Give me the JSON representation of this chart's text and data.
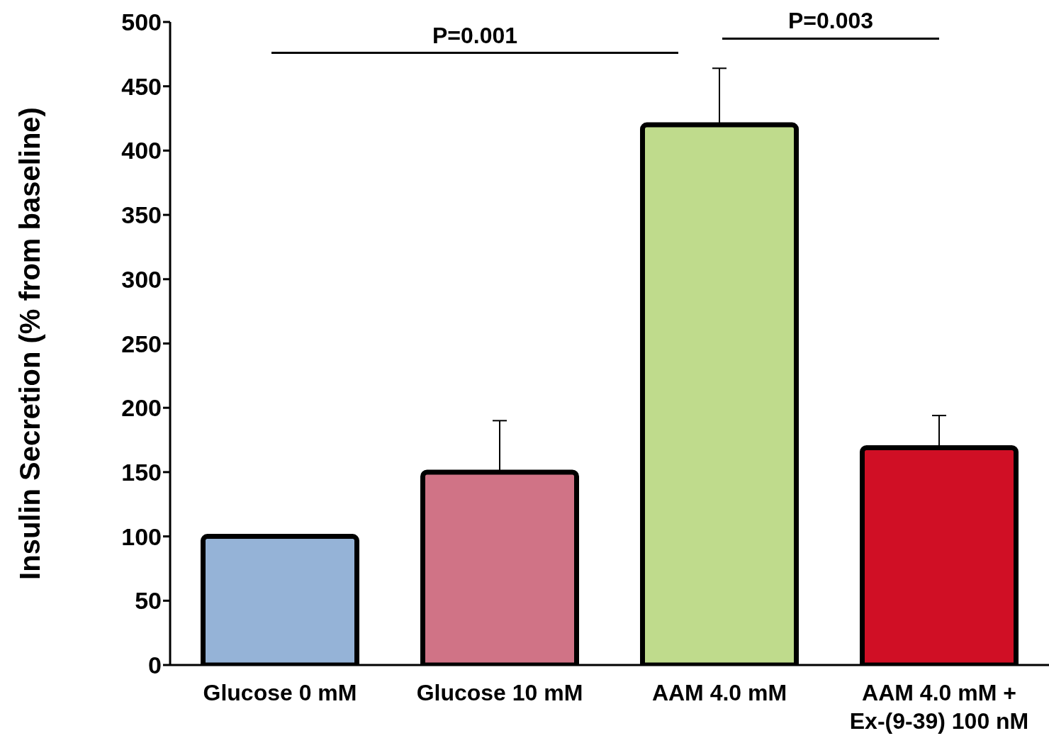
{
  "chart_data": {
    "type": "bar",
    "ylabel": "Insulin Secretion (% from baseline)",
    "categories": [
      "Glucose 0 mM",
      "Glucose 10 mM",
      "AAM 4.0 mM",
      "AAM 4.0 mM + Ex-(9-39) 100 nM"
    ],
    "values": [
      100,
      150,
      420,
      169
    ],
    "colors": [
      "#95b3d7",
      "#d07386",
      "#bfdb8c",
      "#d00f25"
    ],
    "errors": [
      null,
      [
        150,
        190
      ],
      [
        420,
        464
      ],
      [
        169,
        194
      ]
    ],
    "ylim": [
      0,
      500
    ],
    "yticks": [
      0,
      50,
      100,
      150,
      200,
      250,
      300,
      350,
      400,
      450,
      500
    ],
    "annotations": [
      "P=0.001",
      "P=0.003"
    ]
  }
}
